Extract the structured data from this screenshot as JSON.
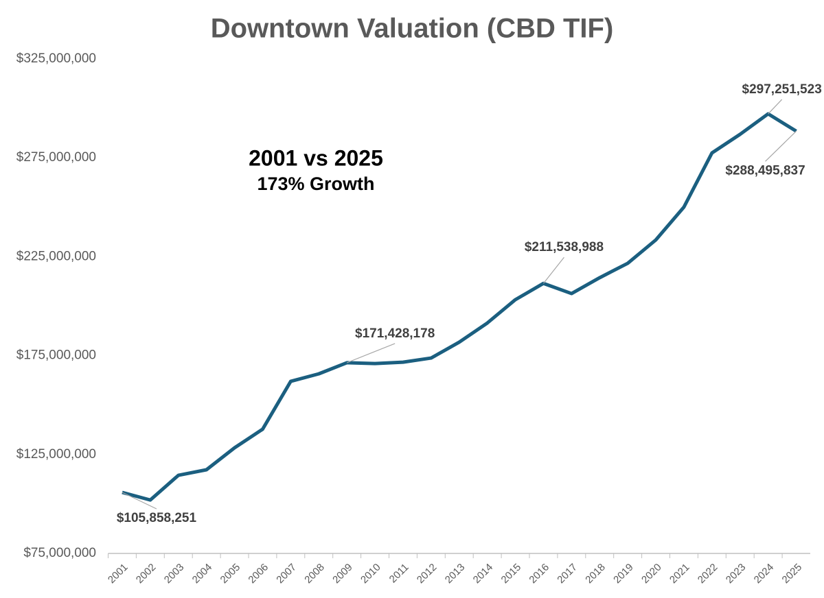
{
  "chart_data": {
    "type": "line",
    "title": "Downtown Valuation (CBD TIF)",
    "annotations": [
      "2001 vs 2025",
      "173% Growth"
    ],
    "categories": [
      "2001",
      "2002",
      "2003",
      "2004",
      "2005",
      "2006",
      "2007",
      "2008",
      "2009",
      "2010",
      "2011",
      "2012",
      "2013",
      "2014",
      "2015",
      "2016",
      "2017",
      "2018",
      "2019",
      "2020",
      "2021",
      "2022",
      "2023",
      "2024",
      "2025"
    ],
    "series": [
      {
        "name": "Downtown Valuation",
        "color": "#1b5f80",
        "values": [
          105858251,
          102000000,
          114500000,
          117300000,
          128400000,
          137800000,
          162000000,
          165800000,
          171428178,
          171000000,
          171700000,
          173800000,
          181800000,
          191500000,
          203300000,
          211538988,
          206400000,
          214400000,
          221700000,
          233500000,
          250100000,
          277500000,
          286900000,
          297251523,
          288495837
        ],
        "value_labels": [
          "$105,858,251",
          null,
          null,
          null,
          null,
          null,
          null,
          null,
          "$171,428,178",
          null,
          null,
          null,
          null,
          null,
          null,
          "$211,538,988",
          null,
          null,
          null,
          null,
          null,
          null,
          null,
          "$297,251,523",
          "$288,495,837"
        ]
      }
    ],
    "ylim": [
      75000000,
      325000000
    ],
    "yticks": [
      {
        "value": 75000000,
        "label": "$75,000,000"
      },
      {
        "value": 125000000,
        "label": "$125,000,000"
      },
      {
        "value": 175000000,
        "label": "$175,000,000"
      },
      {
        "value": 225000000,
        "label": "$225,000,000"
      },
      {
        "value": 275000000,
        "label": "$275,000,000"
      },
      {
        "value": 325000000,
        "label": "$325,000,000"
      }
    ],
    "grid": false
  }
}
